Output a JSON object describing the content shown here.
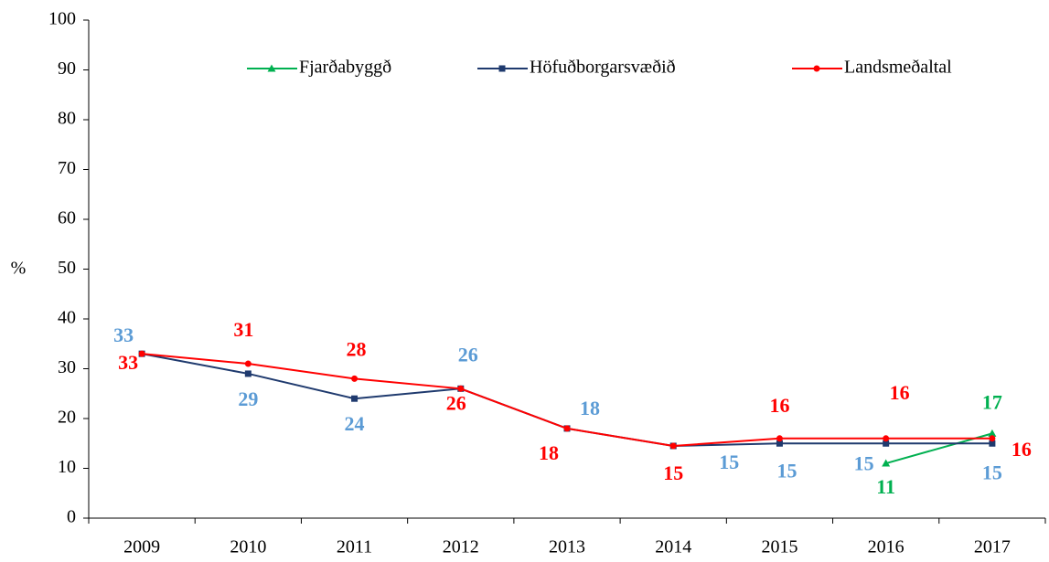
{
  "chart_data": {
    "type": "line",
    "y_label": "%",
    "categories": [
      "2009",
      "2010",
      "2011",
      "2012",
      "2013",
      "2014",
      "2015",
      "2016",
      "2017"
    ],
    "series": [
      {
        "name": "Fjarðabyggð",
        "color": "#00b050",
        "label_color": "#00b050",
        "marker": "triangle",
        "values": [
          null,
          null,
          null,
          null,
          null,
          null,
          null,
          11,
          17
        ],
        "value_labels": [
          null,
          null,
          null,
          null,
          null,
          null,
          null,
          "11",
          "17"
        ]
      },
      {
        "name": "Höfuðborgarsvæðið",
        "color": "#1f3a6e",
        "label_color": "#5b9bd5",
        "marker": "square",
        "values": [
          33,
          29,
          24,
          26,
          18,
          14.5,
          15,
          15,
          15
        ],
        "value_labels": [
          "33",
          "29",
          "24",
          "26",
          "18",
          "15",
          "15",
          "15",
          "15"
        ]
      },
      {
        "name": "Landsmeðaltal",
        "color": "#ff0000",
        "label_color": "#ff0000",
        "marker": "circle",
        "values": [
          33,
          31,
          28,
          26,
          18,
          14.5,
          16,
          16,
          16
        ],
        "value_labels": [
          "33",
          "31",
          "28",
          "26",
          "18",
          "15",
          "16",
          "16",
          "16"
        ]
      }
    ],
    "ylim": [
      0,
      100
    ],
    "yticks": [
      0,
      10,
      20,
      30,
      40,
      50,
      60,
      70,
      80,
      90,
      100
    ],
    "legend": "top"
  }
}
